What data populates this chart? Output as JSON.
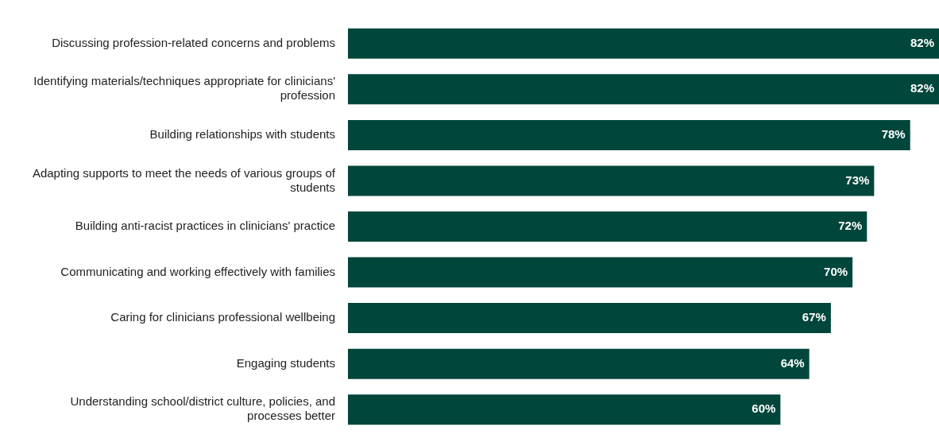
{
  "chart_data": {
    "type": "bar",
    "orientation": "horizontal",
    "categories": [
      "Discussing profession-related concerns and problems",
      "Identifying materials/techniques appropriate for clinicians' profession",
      "Building relationships with students",
      "Adapting supports to meet the needs of various groups of students",
      "Building anti-racist practices in clinicians' practice",
      "Communicating and working effectively with families",
      "Caring for clinicians professional wellbeing",
      "Engaging students",
      "Understanding school/district culture, policies, and processes better"
    ],
    "values": [
      82,
      82,
      78,
      73,
      72,
      70,
      67,
      64,
      60
    ],
    "value_labels": [
      "82%",
      "82%",
      "78%",
      "73%",
      "72%",
      "70%",
      "67%",
      "64%",
      "60%"
    ],
    "color": "#00463a",
    "legend": false
  }
}
